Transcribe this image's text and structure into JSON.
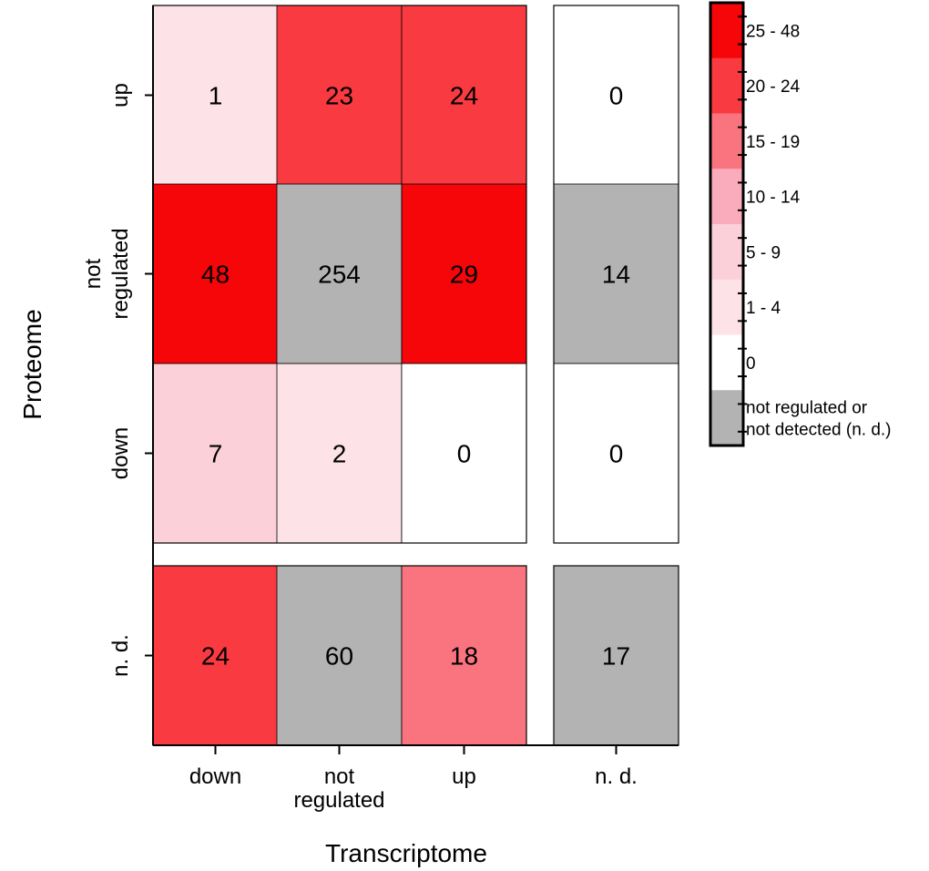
{
  "chart_data": {
    "type": "heatmap",
    "xlabel": "Transcriptome",
    "ylabel": "Proteome",
    "x_categories": [
      [
        "down"
      ],
      [
        "not",
        "regulated"
      ],
      [
        "up"
      ],
      [
        "n. d."
      ]
    ],
    "y_categories": [
      [
        "up"
      ],
      [
        "not",
        "regulated"
      ],
      [
        "down"
      ],
      [
        "n. d."
      ]
    ],
    "values": [
      [
        1,
        23,
        24,
        0
      ],
      [
        48,
        254,
        29,
        14
      ],
      [
        7,
        2,
        0,
        0
      ],
      [
        24,
        60,
        18,
        17
      ]
    ],
    "gray_cells": [
      [
        1,
        1
      ],
      [
        1,
        3
      ],
      [
        3,
        1
      ],
      [
        3,
        3
      ]
    ],
    "legend": {
      "entries": [
        {
          "label": [
            "25 - 48"
          ],
          "color": "#f60509"
        },
        {
          "label": [
            "20 - 24"
          ],
          "color": "#f93a40"
        },
        {
          "label": [
            "15 - 19"
          ],
          "color": "#fa7480"
        },
        {
          "label": [
            "10 - 14"
          ],
          "color": "#fbacbc"
        },
        {
          "label": [
            "5 - 9"
          ],
          "color": "#fbd0d9"
        },
        {
          "label": [
            "1 - 4"
          ],
          "color": "#fde2e7"
        },
        {
          "label": [
            "0"
          ],
          "color": "#ffffff"
        },
        {
          "label": [
            "not regulated or",
            "not detected (n. d.)"
          ],
          "color": "#b3b3b3"
        }
      ]
    }
  }
}
